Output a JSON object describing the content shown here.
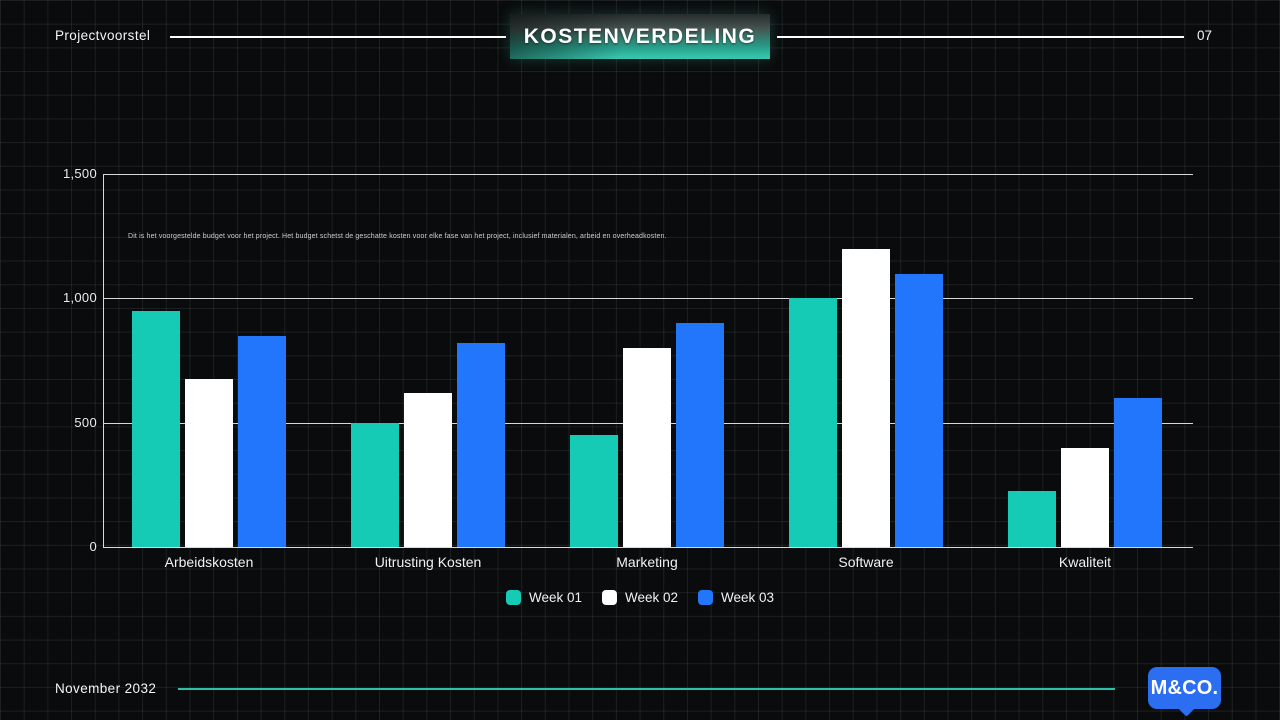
{
  "header": {
    "left_label": "Projectvoorstel",
    "title": "KOSTENVERDELING",
    "page_number": "07"
  },
  "description": "Dit is het voorgestelde budget voor het project. Het budget schetst de geschatte kosten voor elke fase van het project, inclusief materialen, arbeid en overheadkosten.",
  "footer": {
    "date": "November 2032",
    "logo_text": "M&CO."
  },
  "colors": {
    "week01": "#16cbb6",
    "week02": "#ffffff",
    "week03": "#2176fb",
    "accent_teal": "#2bc2a8",
    "logo_blue": "#2b6ef2",
    "gridline": "#d9d9d9"
  },
  "chart_data": {
    "type": "bar",
    "title": "KOSTENVERDELING",
    "categories": [
      "Arbeidskosten",
      "Uitrusting Kosten",
      "Marketing",
      "Software",
      "Kwaliteit"
    ],
    "series": [
      {
        "name": "Week 01",
        "color": "#16cbb6",
        "values": [
          950,
          500,
          450,
          1000,
          225
        ]
      },
      {
        "name": "Week 02",
        "color": "#ffffff",
        "values": [
          675,
          620,
          800,
          1200,
          400
        ]
      },
      {
        "name": "Week 03",
        "color": "#2176fb",
        "values": [
          850,
          820,
          900,
          1100,
          600
        ]
      }
    ],
    "ylim": [
      0,
      1500
    ],
    "ytick_values": [
      0,
      500,
      1000,
      1500
    ],
    "ytick_labels": [
      "0",
      "500",
      "1,000",
      "1,500"
    ],
    "grid": true,
    "legend_position": "bottom"
  }
}
